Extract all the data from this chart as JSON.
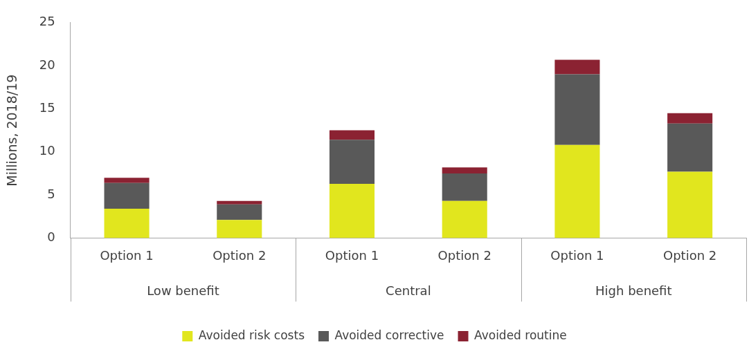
{
  "chart_data": {
    "type": "bar",
    "stacked": true,
    "ylabel": "Millions, 2018/19",
    "categories": [
      "Option 1",
      "Option 2",
      "Option 1",
      "Option 2",
      "Option 1",
      "Option 2"
    ],
    "annotations": [
      "Low benefit",
      "Central",
      "High benefit"
    ],
    "series": [
      {
        "name": "Avoided risk costs",
        "color": "#e1e61e",
        "values": [
          3.4,
          2.1,
          6.3,
          4.3,
          10.8,
          7.7
        ]
      },
      {
        "name": "Avoided corrective",
        "color": "#595959",
        "values": [
          3,
          1.8,
          5.1,
          3.2,
          8.2,
          5.6
        ]
      },
      {
        "name": "Avoided routine",
        "color": "#8b2232",
        "values": [
          0.6,
          0.4,
          1.1,
          0.7,
          1.7,
          1.2
        ]
      }
    ],
    "ylim": [
      0,
      25
    ],
    "yticks": [
      0,
      5,
      10,
      15,
      20,
      25
    ],
    "grid": false,
    "legend": "bottom"
  }
}
